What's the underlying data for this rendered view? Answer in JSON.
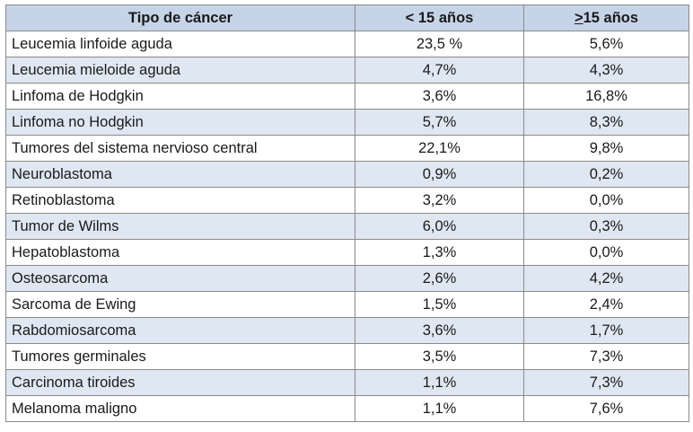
{
  "table": {
    "headers": {
      "col1": "Tipo de cáncer",
      "col2": "< 15 años",
      "col3_symbol": ">",
      "col3_rest": "15 años"
    },
    "rows": [
      {
        "type": "Leucemia linfoide aguda",
        "under15": "23,5 %",
        "over15": "5,6%"
      },
      {
        "type": "Leucemia mieloide aguda",
        "under15": "4,7%",
        "over15": "4,3%"
      },
      {
        "type": "Linfoma de Hodgkin",
        "under15": "3,6%",
        "over15": "16,8%"
      },
      {
        "type": "Linfoma no Hodgkin",
        "under15": "5,7%",
        "over15": "8,3%"
      },
      {
        "type": "Tumores del sistema nervioso central",
        "under15": "22,1%",
        "over15": "9,8%"
      },
      {
        "type": "Neuroblastoma",
        "under15": "0,9%",
        "over15": "0,2%"
      },
      {
        "type": "Retinoblastoma",
        "under15": "3,2%",
        "over15": "0,0%"
      },
      {
        "type": "Tumor de Wilms",
        "under15": "6,0%",
        "over15": "0,3%"
      },
      {
        "type": "Hepatoblastoma",
        "under15": "1,3%",
        "over15": "0,0%"
      },
      {
        "type": "Osteosarcoma",
        "under15": "2,6%",
        "over15": "4,2%"
      },
      {
        "type": "Sarcoma de Ewing",
        "under15": "1,5%",
        "over15": "2,4%"
      },
      {
        "type": "Rabdomiosarcoma",
        "under15": "3,6%",
        "over15": "1,7%"
      },
      {
        "type": "Tumores germinales",
        "under15": "3,5%",
        "over15": "7,3%"
      },
      {
        "type": "Carcinoma tiroides",
        "under15": "1,1%",
        "over15": "7,3%"
      },
      {
        "type": "Melanoma maligno",
        "under15": "1,1%",
        "over15": "7,6%"
      }
    ]
  }
}
